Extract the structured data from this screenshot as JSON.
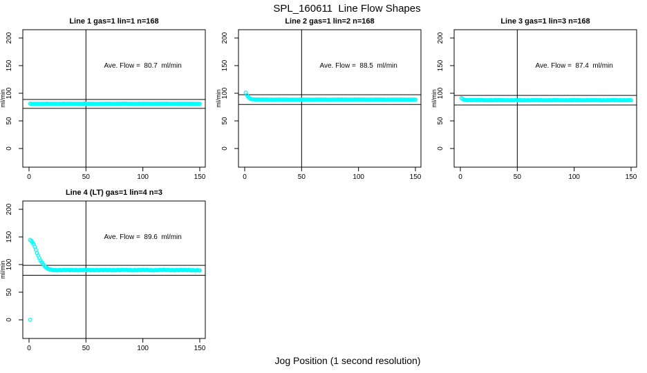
{
  "figure": {
    "main_title": "SPL_160611  Line Flow Shapes",
    "x_axis_label": "Jog Position (1 second resolution)",
    "point_color": "#00FFFF",
    "axis_color": "#000000",
    "background_color": "#FFFFFF"
  },
  "chart_data": [
    {
      "type": "scatter",
      "title": "Line 1 gas=1 lin=1 n=168",
      "annotation": "Ave. Flow =  80.7  ml/min",
      "ave_flow_ml_min": 80.7,
      "ylabel": "ml/min",
      "x_ticks": [
        0,
        50,
        100,
        150
      ],
      "y_ticks": [
        0,
        50,
        100,
        150,
        200
      ],
      "xlim": [
        -5.5,
        155
      ],
      "ylim": [
        -34,
        215
      ],
      "vline_x": 50,
      "ref_lines": [
        88.8,
        72.6
      ],
      "x_range": [
        1,
        150
      ],
      "jitter": 0.25,
      "anchor_points": [
        [
          1,
          81
        ],
        [
          20,
          81
        ],
        [
          40,
          81.1
        ],
        [
          60,
          80.9
        ],
        [
          80,
          81.1
        ],
        [
          100,
          81
        ],
        [
          120,
          81.1
        ],
        [
          150,
          81
        ]
      ],
      "outlier_points": []
    },
    {
      "type": "scatter",
      "title": "Line 2 gas=1 lin=2 n=168",
      "annotation": "Ave. Flow =  88.5  ml/min",
      "ave_flow_ml_min": 88.5,
      "ylabel": "ml/min",
      "x_ticks": [
        0,
        50,
        100,
        150
      ],
      "y_ticks": [
        0,
        50,
        100,
        150,
        200
      ],
      "xlim": [
        -5.5,
        155
      ],
      "ylim": [
        -34,
        215
      ],
      "vline_x": 50,
      "ref_lines": [
        97.4,
        79.7
      ],
      "x_range": [
        1,
        150
      ],
      "jitter": 0.3,
      "anchor_points": [
        [
          1,
          101
        ],
        [
          2,
          96.5
        ],
        [
          3,
          93.5
        ],
        [
          4,
          91.5
        ],
        [
          5,
          90.3
        ],
        [
          6,
          89.5
        ],
        [
          8,
          89
        ],
        [
          10,
          88.8
        ],
        [
          15,
          88.6
        ],
        [
          25,
          88.5
        ],
        [
          50,
          88.5
        ],
        [
          100,
          88.6
        ],
        [
          150,
          88.5
        ]
      ],
      "outlier_points": []
    },
    {
      "type": "scatter",
      "title": "Line 3 gas=1 lin=3 n=168",
      "annotation": "Ave. Flow =  87.4  ml/min",
      "ave_flow_ml_min": 87.4,
      "ylabel": "ml/min",
      "x_ticks": [
        0,
        50,
        100,
        150
      ],
      "y_ticks": [
        0,
        50,
        100,
        150,
        200
      ],
      "xlim": [
        -5.5,
        155
      ],
      "ylim": [
        -34,
        215
      ],
      "vline_x": 50,
      "ref_lines": [
        96.1,
        78.7
      ],
      "x_range": [
        1,
        150
      ],
      "jitter": 0.35,
      "anchor_points": [
        [
          1,
          91
        ],
        [
          2,
          89.5
        ],
        [
          3,
          88.6
        ],
        [
          4,
          88.1
        ],
        [
          6,
          87.8
        ],
        [
          10,
          87.6
        ],
        [
          20,
          87.5
        ],
        [
          50,
          87.4
        ],
        [
          100,
          87.4
        ],
        [
          150,
          87.4
        ]
      ],
      "outlier_points": []
    },
    {
      "type": "scatter",
      "title": "Line 4 (LT) gas=1 lin=4 n=3",
      "annotation": "Ave. Flow =  89.6  ml/min",
      "ave_flow_ml_min": 89.6,
      "ylabel": "ml/min",
      "x_ticks": [
        0,
        50,
        100,
        150
      ],
      "y_ticks": [
        0,
        50,
        100,
        150,
        200
      ],
      "xlim": [
        -5.5,
        155
      ],
      "ylim": [
        -34,
        215
      ],
      "vline_x": 50,
      "ref_lines": [
        98.6,
        80.6
      ],
      "x_range": [
        1,
        150
      ],
      "jitter": 0.6,
      "anchor_points": [
        [
          1,
          144
        ],
        [
          2,
          143
        ],
        [
          3,
          140.5
        ],
        [
          4,
          137
        ],
        [
          5,
          132
        ],
        [
          6,
          127
        ],
        [
          7,
          121.5
        ],
        [
          8,
          116.5
        ],
        [
          9,
          112
        ],
        [
          10,
          108
        ],
        [
          11,
          104.5
        ],
        [
          12,
          101.5
        ],
        [
          13,
          99
        ],
        [
          14,
          96.5
        ],
        [
          15,
          94.5
        ],
        [
          16,
          93
        ],
        [
          17,
          92
        ],
        [
          18,
          91.3
        ],
        [
          19,
          90.8
        ],
        [
          20,
          90.5
        ],
        [
          22,
          90.2
        ],
        [
          25,
          90
        ],
        [
          30,
          89.9
        ],
        [
          40,
          90.1
        ],
        [
          50,
          89.9
        ],
        [
          60,
          90.1
        ],
        [
          70,
          89.9
        ],
        [
          80,
          90.2
        ],
        [
          90,
          89.9
        ],
        [
          100,
          90.1
        ],
        [
          110,
          89.9
        ],
        [
          120,
          90.2
        ],
        [
          130,
          89.9
        ],
        [
          140,
          90.1
        ],
        [
          150,
          89.5
        ]
      ],
      "outlier_points": [
        [
          1,
          0
        ]
      ]
    }
  ]
}
